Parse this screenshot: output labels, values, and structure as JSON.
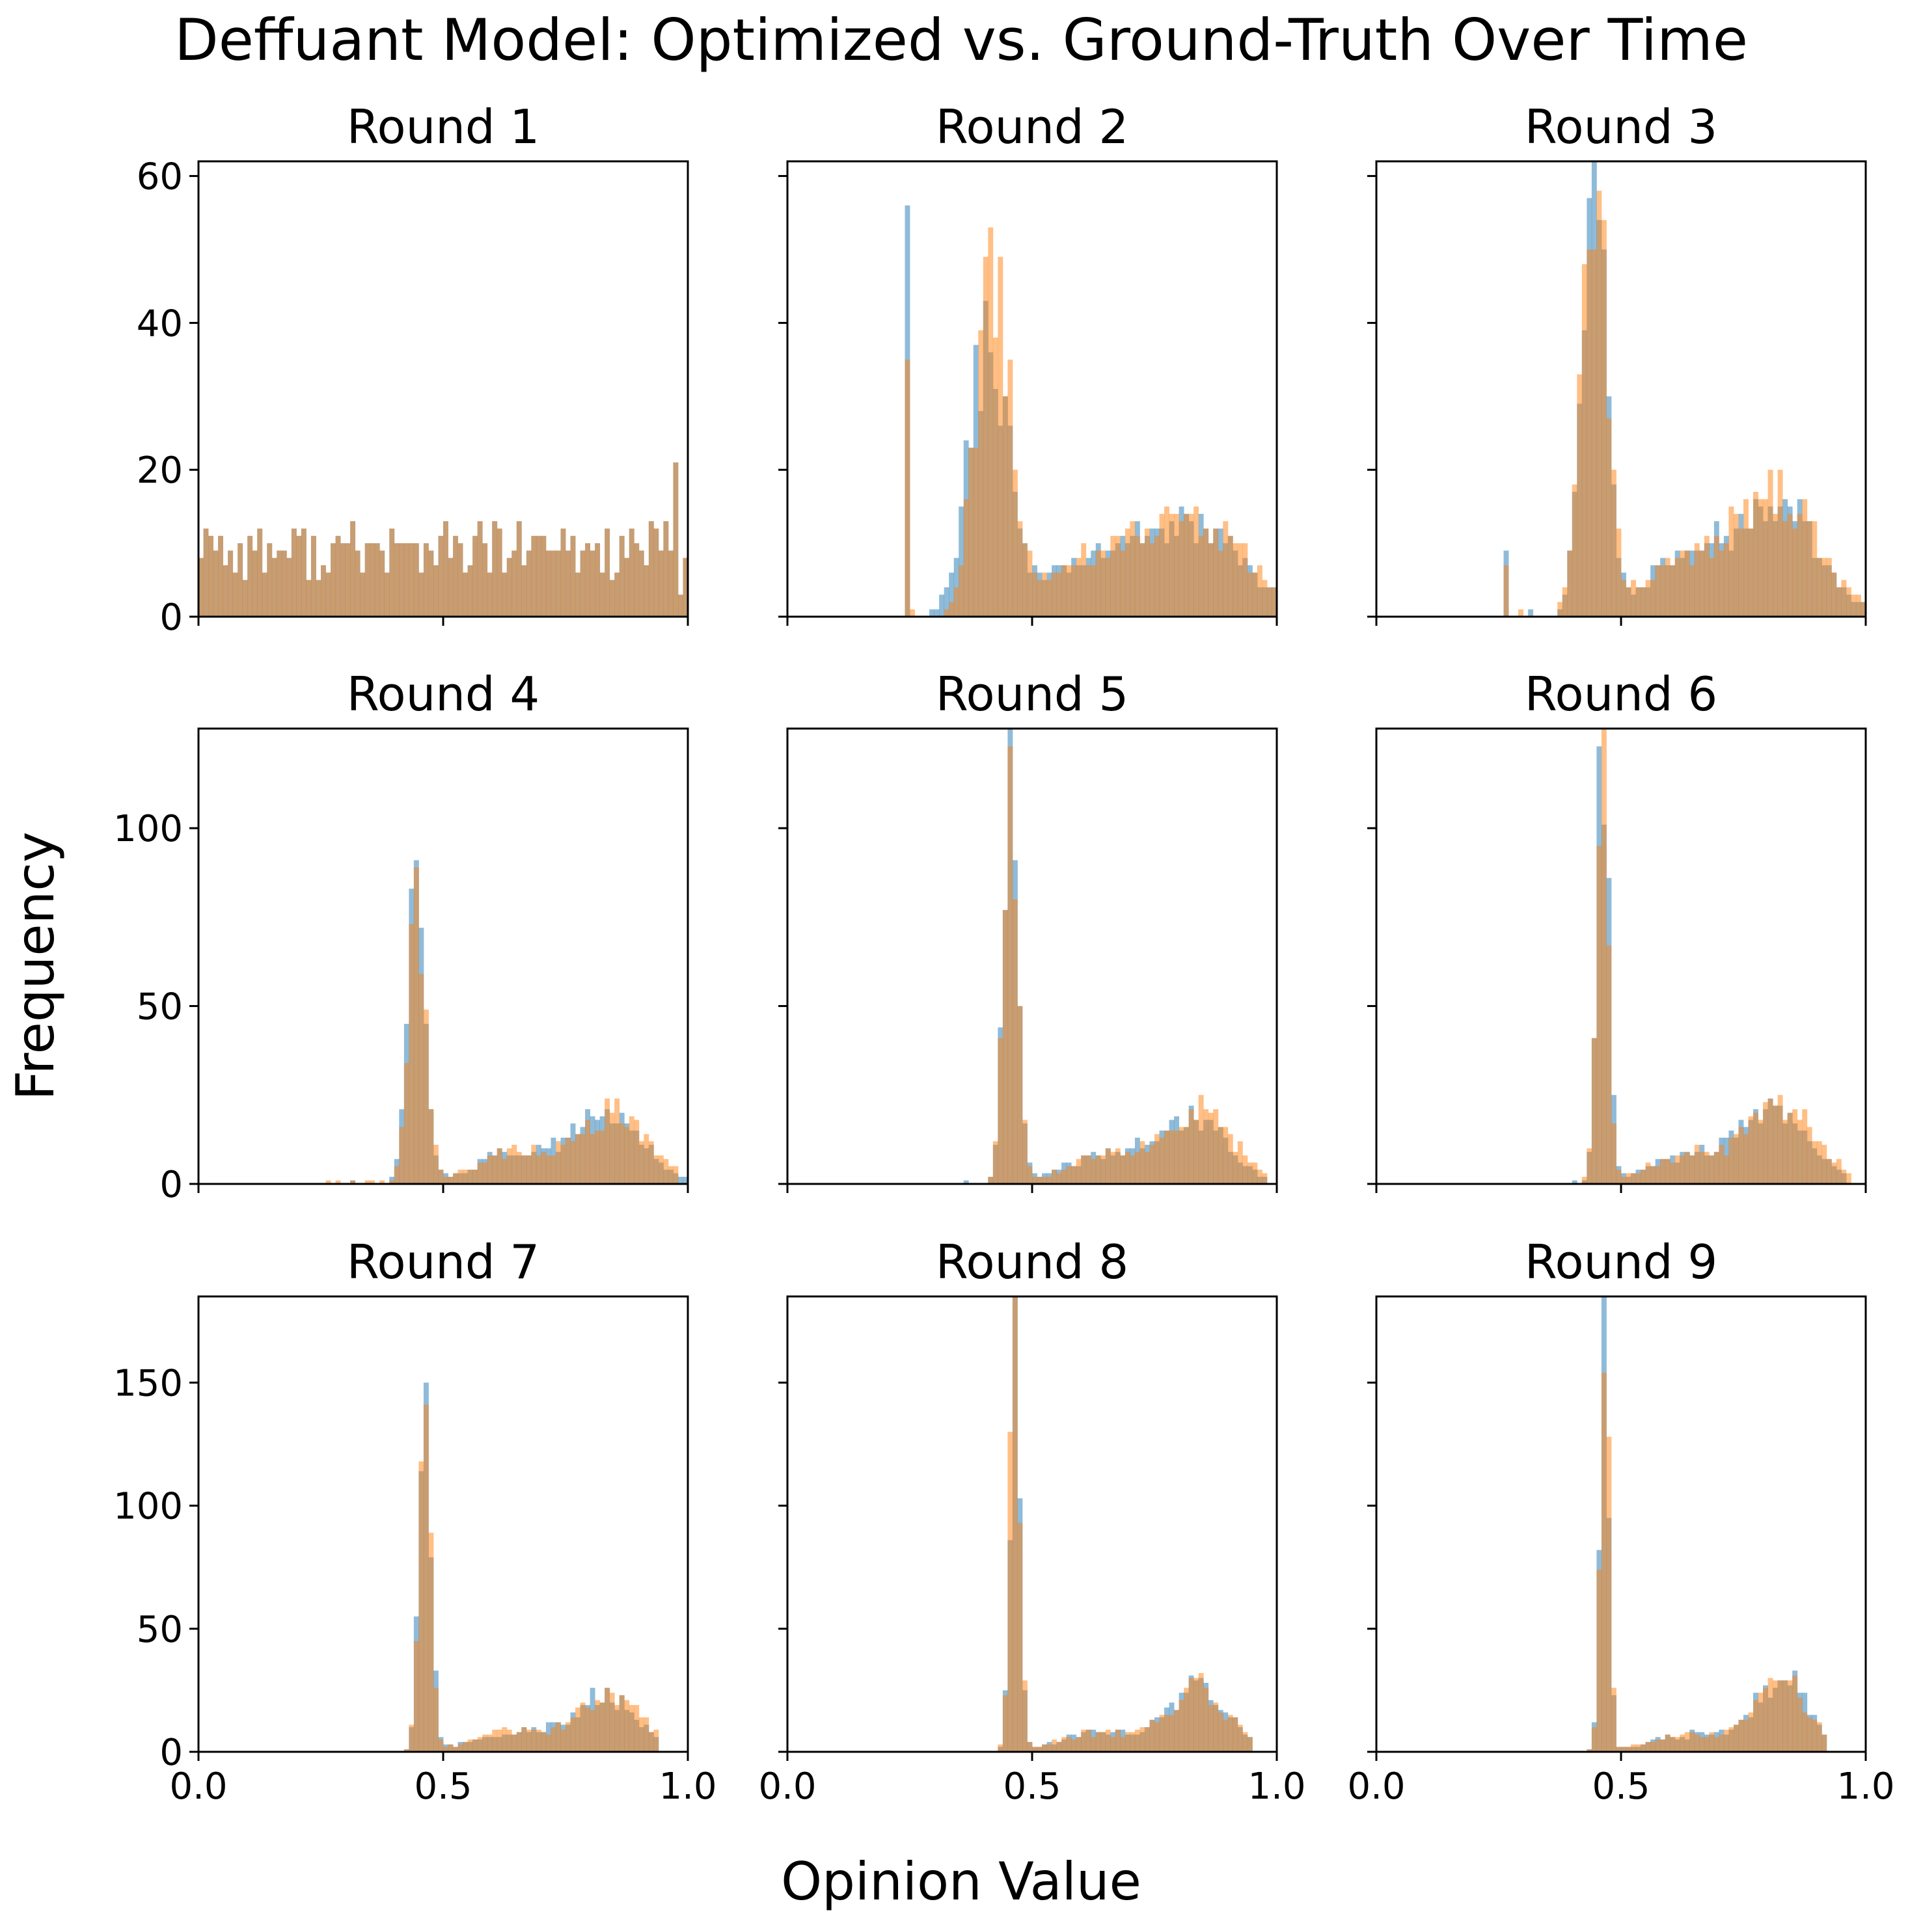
{
  "figure": {
    "suptitle": "Deffuant Model: Optimized vs. Ground-Truth Over Time",
    "xlabel": "Opinion Value",
    "ylabel": "Frequency",
    "series_colors": {
      "blue": "#1f77b4",
      "orange": "#ff7f0e"
    },
    "bar_opacity": 0.5
  },
  "chart_data": [
    {
      "type": "bar",
      "title": "Round 1",
      "xlim": [
        0,
        1
      ],
      "ylim": [
        0,
        62
      ],
      "yticks": [
        0,
        20,
        40,
        60
      ],
      "xticks": [
        "0.0",
        "0.5",
        "1.0"
      ],
      "bins": 100,
      "series": [
        {
          "color": "blue",
          "peaks": []
        },
        {
          "color": "orange",
          "peaks": []
        }
      ],
      "uniform": {
        "base": 9,
        "noise": 4,
        "max_val": 21
      }
    },
    {
      "type": "bar",
      "title": "Round 2",
      "xlim": [
        0,
        1
      ],
      "ylim": [
        0,
        62
      ],
      "yticks": [
        0,
        20,
        40,
        60
      ],
      "xticks": [
        "0.0",
        "0.5",
        "1.0"
      ],
      "bins": 100,
      "series": [
        {
          "color": "blue",
          "support": [
            0.24,
            1.0
          ],
          "spikes": [
            [
              0.24,
              56
            ]
          ],
          "peaks": [
            [
              0.41,
              37,
              0.04
            ],
            [
              0.85,
              10,
              0.1
            ],
            [
              0.65,
              8,
              0.12
            ]
          ]
        },
        {
          "color": "orange",
          "support": [
            0.24,
            1.0
          ],
          "spikes": [
            [
              0.24,
              35
            ]
          ],
          "peaks": [
            [
              0.42,
              45,
              0.035
            ],
            [
              0.85,
              11,
              0.1
            ],
            [
              0.65,
              8,
              0.12
            ]
          ]
        }
      ]
    },
    {
      "type": "bar",
      "title": "Round 3",
      "xlim": [
        0,
        1
      ],
      "ylim": [
        0,
        62
      ],
      "yticks": [
        0,
        20,
        40,
        60
      ],
      "xticks": [
        "0.0",
        "0.5",
        "1.0"
      ],
      "bins": 100,
      "series": [
        {
          "color": "blue",
          "support": [
            0.26,
            1.0
          ],
          "spikes": [
            [
              0.26,
              9
            ]
          ],
          "peaks": [
            [
              0.445,
              60,
              0.025
            ],
            [
              0.83,
              14,
              0.08
            ],
            [
              0.65,
              8,
              0.1
            ]
          ]
        },
        {
          "color": "orange",
          "support": [
            0.26,
            1.0
          ],
          "spikes": [
            [
              0.26,
              7
            ]
          ],
          "peaks": [
            [
              0.445,
              62,
              0.025
            ],
            [
              0.83,
              15,
              0.08
            ],
            [
              0.65,
              8,
              0.1
            ]
          ]
        }
      ]
    },
    {
      "type": "bar",
      "title": "Round 4",
      "xlim": [
        0,
        1
      ],
      "ylim": [
        0,
        128
      ],
      "yticks": [
        0,
        50,
        100
      ],
      "xticks": [
        "0.0",
        "0.5",
        "1.0"
      ],
      "bins": 100,
      "series": [
        {
          "color": "blue",
          "support": [
            0.3,
            1.0
          ],
          "peaks": [
            [
              0.447,
              86,
              0.018
            ],
            [
              0.84,
              19,
              0.07
            ],
            [
              0.65,
              9,
              0.08
            ]
          ]
        },
        {
          "color": "orange",
          "support": [
            0.26,
            0.98
          ],
          "peaks": [
            [
              0.447,
              83,
              0.018
            ],
            [
              0.85,
              20,
              0.07
            ],
            [
              0.65,
              9,
              0.08
            ]
          ]
        }
      ]
    },
    {
      "type": "bar",
      "title": "Round 5",
      "xlim": [
        0,
        1
      ],
      "ylim": [
        0,
        128
      ],
      "yticks": [
        0,
        50,
        100
      ],
      "xticks": [
        "0.0",
        "0.5",
        "1.0"
      ],
      "bins": 100,
      "series": [
        {
          "color": "blue",
          "support": [
            0.34,
            0.98
          ],
          "peaks": [
            [
              0.457,
              110,
              0.015
            ],
            [
              0.83,
              19,
              0.07
            ],
            [
              0.65,
              8,
              0.08
            ]
          ]
        },
        {
          "color": "orange",
          "support": [
            0.38,
            0.98
          ],
          "peaks": [
            [
              0.457,
              103,
              0.015
            ],
            [
              0.84,
              20,
              0.07
            ],
            [
              0.65,
              8,
              0.08
            ]
          ]
        }
      ]
    },
    {
      "type": "bar",
      "title": "Round 6",
      "xlim": [
        0,
        1
      ],
      "ylim": [
        0,
        128
      ],
      "yticks": [
        0,
        50,
        100
      ],
      "xticks": [
        "0.0",
        "0.5",
        "1.0"
      ],
      "bins": 100,
      "series": [
        {
          "color": "blue",
          "support": [
            0.4,
            0.96
          ],
          "peaks": [
            [
              0.462,
              128,
              0.012
            ],
            [
              0.82,
              20,
              0.07
            ],
            [
              0.64,
              8,
              0.08
            ]
          ]
        },
        {
          "color": "orange",
          "support": [
            0.4,
            0.97
          ],
          "peaks": [
            [
              0.462,
              128,
              0.012
            ],
            [
              0.83,
              21,
              0.07
            ],
            [
              0.64,
              8,
              0.08
            ]
          ]
        }
      ]
    },
    {
      "type": "bar",
      "title": "Round 7",
      "xlim": [
        0,
        1
      ],
      "ylim": [
        0,
        185
      ],
      "yticks": [
        0,
        50,
        100,
        150
      ],
      "xticks": [
        "0.0",
        "0.5",
        "1.0"
      ],
      "bins": 100,
      "series": [
        {
          "color": "blue",
          "support": [
            0.41,
            0.94
          ],
          "peaks": [
            [
              0.463,
              148,
              0.012
            ],
            [
              0.83,
              22,
              0.065
            ],
            [
              0.64,
              8,
              0.08
            ]
          ]
        },
        {
          "color": "orange",
          "support": [
            0.41,
            0.94
          ],
          "peaks": [
            [
              0.463,
              138,
              0.012
            ],
            [
              0.84,
              23,
              0.065
            ],
            [
              0.64,
              8,
              0.08
            ]
          ]
        }
      ]
    },
    {
      "type": "bar",
      "title": "Round 8",
      "xlim": [
        0,
        1
      ],
      "ylim": [
        0,
        185
      ],
      "yticks": [
        0,
        50,
        100,
        150
      ],
      "xticks": [
        "0.0",
        "0.5",
        "1.0"
      ],
      "bins": 100,
      "series": [
        {
          "color": "blue",
          "support": [
            0.43,
            0.95
          ],
          "peaks": [
            [
              0.465,
              171,
              0.01
            ],
            [
              0.84,
              27,
              0.06
            ],
            [
              0.64,
              8,
              0.08
            ]
          ]
        },
        {
          "color": "orange",
          "support": [
            0.43,
            0.95
          ],
          "peaks": [
            [
              0.465,
              181,
              0.01
            ],
            [
              0.84,
              26,
              0.06
            ],
            [
              0.64,
              8,
              0.08
            ]
          ]
        }
      ]
    },
    {
      "type": "bar",
      "title": "Round 9",
      "xlim": [
        0,
        1
      ],
      "ylim": [
        0,
        185
      ],
      "yticks": [
        0,
        50,
        100,
        150
      ],
      "xticks": [
        "0.0",
        "0.5",
        "1.0"
      ],
      "bins": 100,
      "series": [
        {
          "color": "blue",
          "support": [
            0.43,
            0.92
          ],
          "peaks": [
            [
              0.466,
              185,
              0.009
            ],
            [
              0.83,
              30,
              0.055
            ],
            [
              0.64,
              7,
              0.08
            ]
          ]
        },
        {
          "color": "orange",
          "support": [
            0.43,
            0.92
          ],
          "peaks": [
            [
              0.466,
              185,
              0.009
            ],
            [
              0.83,
              29,
              0.055
            ],
            [
              0.64,
              7,
              0.08
            ]
          ]
        }
      ]
    }
  ]
}
